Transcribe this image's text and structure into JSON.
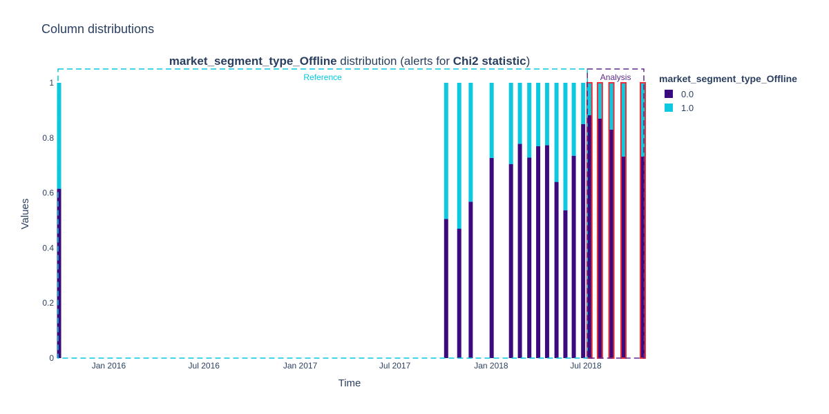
{
  "figure_title": "Column distributions",
  "chart_data": {
    "type": "bar",
    "stacked": true,
    "title_parts": [
      {
        "text": "market_segment_type_Offline",
        "bold": true
      },
      {
        "text": " distribution (alerts for ",
        "bold": false
      },
      {
        "text": "Chi2 statistic",
        "bold": true
      },
      {
        "text": ")",
        "bold": false
      }
    ],
    "xlabel": "Time",
    "ylabel": "Values",
    "x_range": [
      "2015-09-26",
      "2018-10-20"
    ],
    "ylim": [
      0,
      1.05
    ],
    "x_ticks": [
      {
        "date": "2016-01-01",
        "label": "Jan 2016"
      },
      {
        "date": "2016-07-01",
        "label": "Jul 2016"
      },
      {
        "date": "2017-01-01",
        "label": "Jan 2017"
      },
      {
        "date": "2017-07-01",
        "label": "Jul 2017"
      },
      {
        "date": "2018-01-01",
        "label": "Jan 2018"
      },
      {
        "date": "2018-07-01",
        "label": "Jul 2018"
      }
    ],
    "y_ticks": [
      {
        "value": 0,
        "label": "0"
      },
      {
        "value": 0.2,
        "label": "0.2"
      },
      {
        "value": 0.4,
        "label": "0.4"
      },
      {
        "value": 0.6,
        "label": "0.6"
      },
      {
        "value": 0.8,
        "label": "0.8"
      },
      {
        "value": 1,
        "label": "1"
      }
    ],
    "legend": {
      "title": "market_segment_type_Offline",
      "placement": "right",
      "entries": [
        {
          "label": "0.0",
          "color": "#3b0a7e"
        },
        {
          "label": "1.0",
          "color": "#0ec8e0"
        }
      ]
    },
    "periods": [
      {
        "label": "Reference",
        "start": "2015-09-26",
        "end": "2018-07-04",
        "color": "#00c8e0"
      },
      {
        "label": "Analysis",
        "start": "2018-07-04",
        "end": "2018-10-20",
        "color": "#5b2a8c"
      }
    ],
    "bars": [
      {
        "date": "2015-09-28",
        "v0": 0.615,
        "v1": 0.385,
        "alert": false
      },
      {
        "date": "2017-10-07",
        "v0": 0.505,
        "v1": 0.495,
        "alert": false
      },
      {
        "date": "2017-11-01",
        "v0": 0.47,
        "v1": 0.53,
        "alert": false
      },
      {
        "date": "2017-11-23",
        "v0": 0.568,
        "v1": 0.432,
        "alert": false
      },
      {
        "date": "2018-01-02",
        "v0": 0.727,
        "v1": 0.273,
        "alert": false
      },
      {
        "date": "2018-02-08",
        "v0": 0.705,
        "v1": 0.295,
        "alert": false
      },
      {
        "date": "2018-02-25",
        "v0": 0.778,
        "v1": 0.222,
        "alert": false
      },
      {
        "date": "2018-03-15",
        "v0": 0.728,
        "v1": 0.272,
        "alert": false
      },
      {
        "date": "2018-04-01",
        "v0": 0.77,
        "v1": 0.23,
        "alert": false
      },
      {
        "date": "2018-04-18",
        "v0": 0.773,
        "v1": 0.227,
        "alert": false
      },
      {
        "date": "2018-05-06",
        "v0": 0.64,
        "v1": 0.36,
        "alert": false
      },
      {
        "date": "2018-05-23",
        "v0": 0.537,
        "v1": 0.463,
        "alert": false
      },
      {
        "date": "2018-06-08",
        "v0": 0.735,
        "v1": 0.265,
        "alert": false
      },
      {
        "date": "2018-06-26",
        "v0": 0.85,
        "v1": 0.15,
        "alert": false
      },
      {
        "date": "2018-07-08",
        "v0": 0.882,
        "v1": 0.118,
        "alert": true
      },
      {
        "date": "2018-07-28",
        "v0": 0.87,
        "v1": 0.13,
        "alert": true
      },
      {
        "date": "2018-08-19",
        "v0": 0.83,
        "v1": 0.17,
        "alert": true
      },
      {
        "date": "2018-09-11",
        "v0": 0.732,
        "v1": 0.268,
        "alert": true
      },
      {
        "date": "2018-10-18",
        "v0": 0.732,
        "v1": 0.268,
        "alert": true
      }
    ]
  }
}
